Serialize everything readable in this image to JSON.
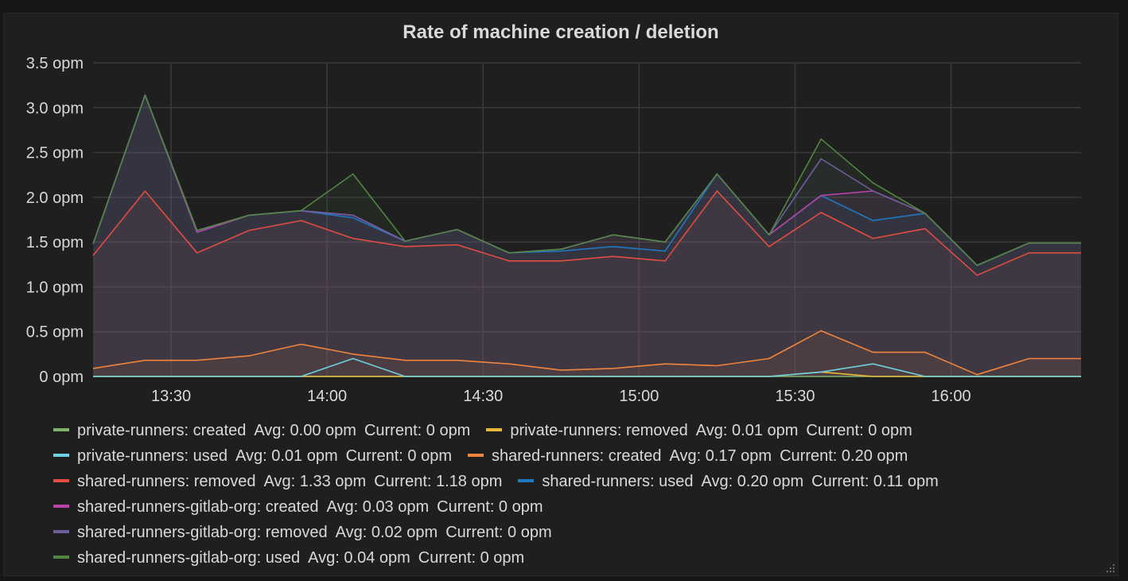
{
  "panel": {
    "title": "Rate of machine creation / deletion"
  },
  "legend": {
    "avg_label": "Avg:",
    "current_label": "Current:",
    "rows": [
      [
        {
          "name": "private-runners: created",
          "color": "#7eb26d",
          "avg": "0.00 opm",
          "current": "0 opm"
        },
        {
          "name": "private-runners: removed",
          "color": "#eab839",
          "avg": "0.01 opm",
          "current": "0 opm"
        }
      ],
      [
        {
          "name": "private-runners: used",
          "color": "#6ed0e0",
          "avg": "0.01 opm",
          "current": "0 opm"
        },
        {
          "name": "shared-runners: created",
          "color": "#ef843c",
          "avg": "0.17 opm",
          "current": "0.20 opm"
        }
      ],
      [
        {
          "name": "shared-runners: removed",
          "color": "#e24d42",
          "avg": "1.33 opm",
          "current": "1.18 opm"
        },
        {
          "name": "shared-runners: used",
          "color": "#1f78c1",
          "avg": "0.20 opm",
          "current": "0.11 opm"
        }
      ],
      [
        {
          "name": "shared-runners-gitlab-org: created",
          "color": "#ba43a9",
          "avg": "0.03 opm",
          "current": "0 opm"
        }
      ],
      [
        {
          "name": "shared-runners-gitlab-org: removed",
          "color": "#705da0",
          "avg": "0.02 opm",
          "current": "0 opm"
        }
      ],
      [
        {
          "name": "shared-runners-gitlab-org: used",
          "color": "#508642",
          "avg": "0.04 opm",
          "current": "0 opm"
        }
      ]
    ]
  },
  "chart_data": {
    "type": "line",
    "title": "Rate of machine creation / deletion",
    "stacked": true,
    "unit": "opm",
    "ylim": [
      0,
      3.5
    ],
    "y_ticks": [
      0,
      0.5,
      1.0,
      1.5,
      2.0,
      2.5,
      3.0,
      3.5
    ],
    "y_tick_labels": [
      "0 opm",
      "0.5 opm",
      "1.0 opm",
      "1.5 opm",
      "2.0 opm",
      "2.5 opm",
      "3.0 opm",
      "3.5 opm"
    ],
    "xlim": [
      "13:15",
      "16:25"
    ],
    "x_ticks": [
      "13:30",
      "14:00",
      "14:30",
      "15:00",
      "15:30",
      "16:00"
    ],
    "x": [
      "13:15",
      "13:25",
      "13:35",
      "13:45",
      "13:55",
      "14:05",
      "14:15",
      "14:25",
      "14:35",
      "14:45",
      "14:55",
      "15:05",
      "15:15",
      "15:25",
      "15:35",
      "15:45",
      "15:55",
      "16:05",
      "16:15",
      "16:25"
    ],
    "grid": true,
    "legend_position": "bottom",
    "series": [
      {
        "name": "private-runners: created",
        "color": "#7eb26d",
        "fill": false,
        "values": [
          0,
          0,
          0,
          0,
          0,
          0,
          0,
          0,
          0,
          0,
          0,
          0,
          0,
          0,
          0,
          0,
          0,
          0,
          0,
          0
        ]
      },
      {
        "name": "private-runners: removed",
        "color": "#eab839",
        "fill": false,
        "values": [
          0,
          0,
          0,
          0,
          0,
          0,
          0,
          0,
          0,
          0,
          0,
          0,
          0,
          0,
          0.05,
          0,
          0,
          0,
          0,
          0
        ]
      },
      {
        "name": "private-runners: used",
        "color": "#6ed0e0",
        "fill": false,
        "values": [
          0,
          0,
          0,
          0,
          0,
          0.2,
          0,
          0,
          0,
          0,
          0,
          0,
          0,
          0,
          0.05,
          0.14,
          0,
          0,
          0,
          0
        ]
      },
      {
        "name": "shared-runners: created",
        "color": "#ef843c",
        "fill": true,
        "values": [
          0.09,
          0.18,
          0.18,
          0.23,
          0.36,
          0.25,
          0.18,
          0.18,
          0.14,
          0.07,
          0.09,
          0.14,
          0.12,
          0.2,
          0.51,
          0.27,
          0.27,
          0.02,
          0.2,
          0.2
        ]
      },
      {
        "name": "shared-runners: removed",
        "color": "#e24d42",
        "fill": true,
        "values": [
          1.35,
          2.07,
          1.38,
          1.63,
          1.74,
          1.54,
          1.45,
          1.47,
          1.29,
          1.29,
          1.34,
          1.29,
          2.07,
          1.45,
          1.83,
          1.54,
          1.65,
          1.13,
          1.38,
          1.38
        ]
      },
      {
        "name": "shared-runners: used",
        "color": "#1f78c1",
        "fill": true,
        "values": [
          1.48,
          3.14,
          1.61,
          1.8,
          1.85,
          1.77,
          1.51,
          1.64,
          1.38,
          1.4,
          1.45,
          1.4,
          2.26,
          1.58,
          2.02,
          1.74,
          1.82,
          1.24,
          1.49,
          1.49
        ]
      },
      {
        "name": "shared-runners-gitlab-org: created",
        "color": "#ba43a9",
        "fill": true,
        "values": [
          1.48,
          3.14,
          1.61,
          1.8,
          1.85,
          1.8,
          1.51,
          1.64,
          1.38,
          1.42,
          1.58,
          1.5,
          2.26,
          1.58,
          2.02,
          2.07,
          1.82,
          1.24,
          1.49,
          1.49
        ]
      },
      {
        "name": "shared-runners-gitlab-org: removed",
        "color": "#705da0",
        "fill": true,
        "values": [
          1.48,
          3.14,
          1.63,
          1.8,
          1.85,
          1.8,
          1.51,
          1.64,
          1.38,
          1.42,
          1.58,
          1.5,
          2.26,
          1.58,
          2.43,
          2.07,
          1.82,
          1.24,
          1.49,
          1.49
        ]
      },
      {
        "name": "shared-runners-gitlab-org: used",
        "color": "#508642",
        "fill": true,
        "values": [
          1.48,
          3.14,
          1.63,
          1.8,
          1.85,
          2.26,
          1.51,
          1.64,
          1.38,
          1.42,
          1.58,
          1.5,
          2.26,
          1.58,
          2.65,
          2.16,
          1.82,
          1.24,
          1.49,
          1.49
        ]
      }
    ]
  }
}
